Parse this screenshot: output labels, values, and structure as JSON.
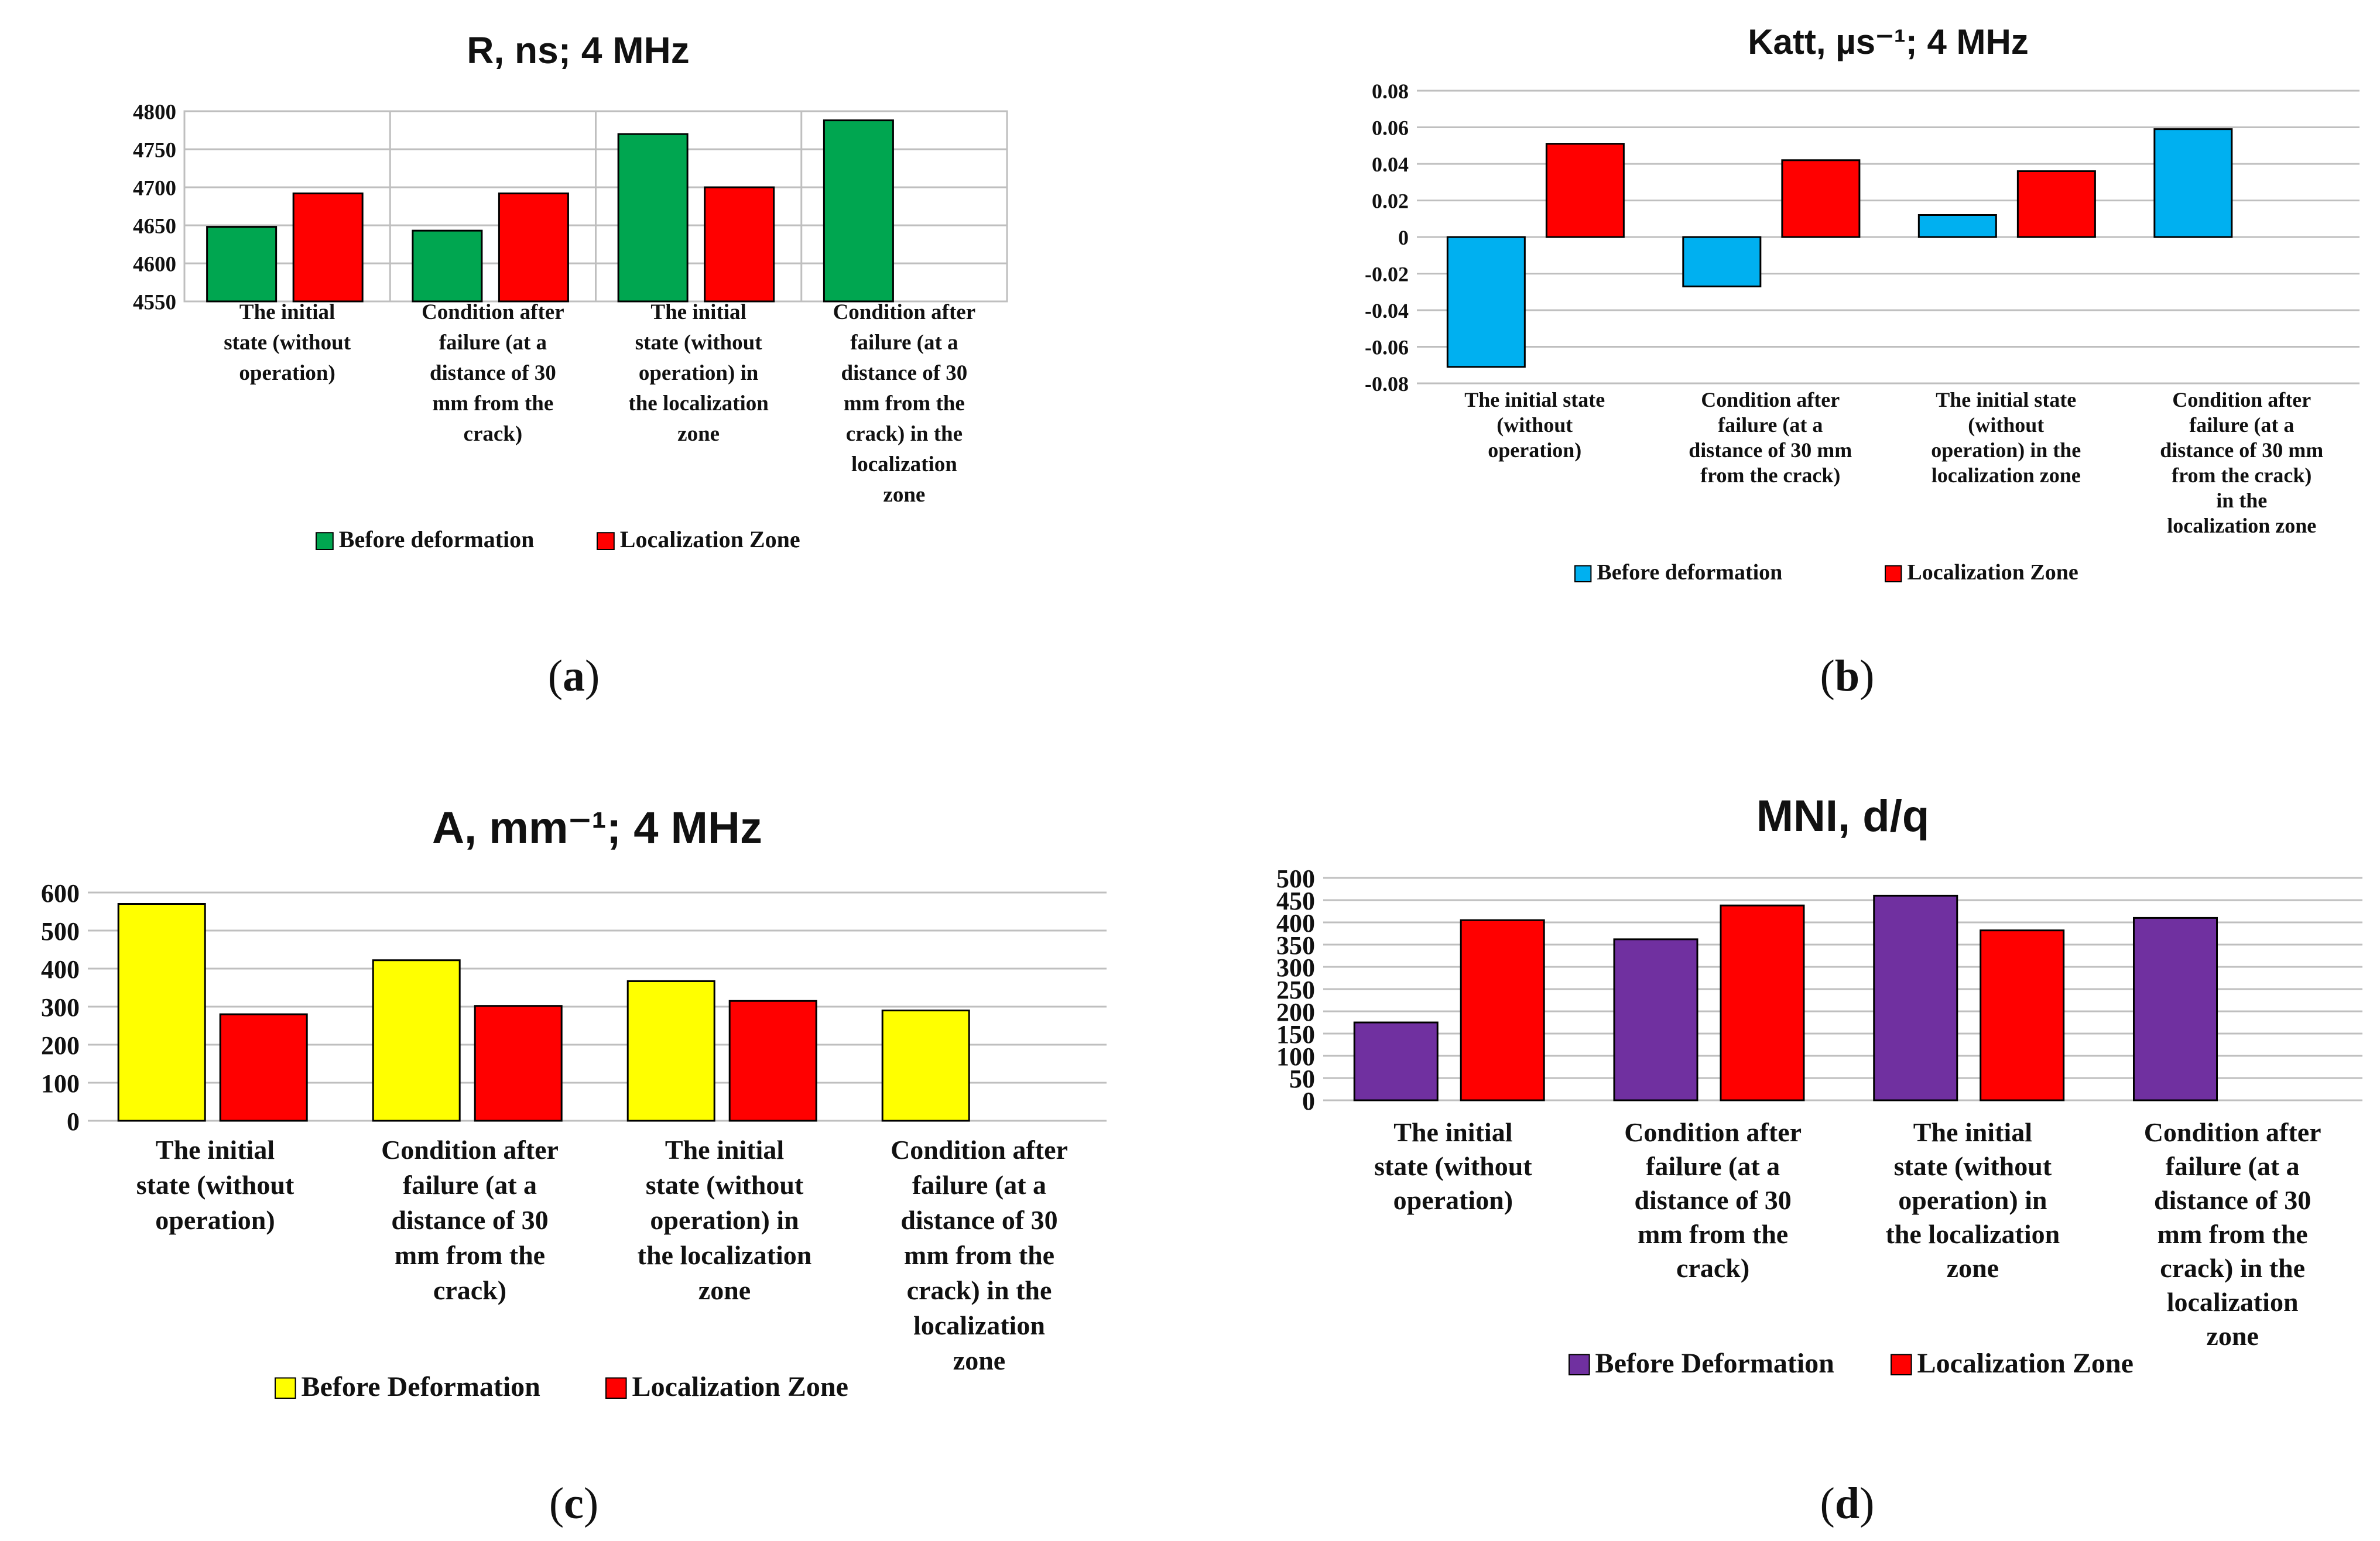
{
  "panel_letters": {
    "a": "a",
    "b": "b",
    "c": "c",
    "d": "d"
  },
  "chart_data": [
    {
      "id": "a",
      "type": "bar",
      "title": "R, ns; 4 MHz",
      "categories": [
        "The initial state (without operation)",
        "Condition after failure (at a distance of 30 mm from the crack)",
        "The initial state (without operation) in the localization zone",
        "Condition after failure (at a distance of 30 mm from the crack) in the localization zone"
      ],
      "series": [
        {
          "name": "Before deformation",
          "color": "#00a650",
          "values": [
            4648,
            4643,
            4770,
            4788
          ]
        },
        {
          "name": "Localization Zone",
          "color": "#ff0000",
          "values": [
            4692,
            4692,
            4700,
            null
          ]
        }
      ],
      "ylim": [
        4550,
        4800
      ],
      "yticks": [
        4550,
        4600,
        4650,
        4700,
        4750,
        4800
      ],
      "ytick_labels": [
        "4550",
        "4600",
        "4650",
        "4700",
        "4750",
        "4800"
      ],
      "grid": true,
      "legend": "bottom"
    },
    {
      "id": "b",
      "type": "bar",
      "title": "Katt, µs⁻¹; 4 MHz",
      "categories": [
        "The initial state (without operation)",
        "Condition after failure (at a distance of 30 mm from the crack)",
        "The initial state (without operation) in the localization zone",
        "Condition after failure (at a distance of 30 mm from the crack) in the localization zone"
      ],
      "series": [
        {
          "name": "Before deformation",
          "color": "#00b0f0",
          "values": [
            -0.071,
            -0.027,
            0.012,
            0.059
          ]
        },
        {
          "name": "Localization Zone",
          "color": "#ff0000",
          "values": [
            0.051,
            0.042,
            0.036,
            null
          ]
        }
      ],
      "ylim": [
        -0.08,
        0.08
      ],
      "yticks": [
        -0.08,
        -0.06,
        -0.04,
        -0.02,
        0,
        0.02,
        0.04,
        0.06,
        0.08
      ],
      "ytick_labels": [
        "-0.08",
        "-0.06",
        "-0.04",
        "-0.02",
        "0",
        "0.02",
        "0.04",
        "0.06",
        "0.08"
      ],
      "grid": true,
      "legend": "bottom"
    },
    {
      "id": "c",
      "type": "bar",
      "title": "A, mm⁻¹; 4 MHz",
      "categories": [
        "The initial state (without operation)",
        "Condition after failure (at a distance of 30 mm from the crack)",
        "The initial state (without operation) in the localization zone",
        "Condition after failure (at a distance of 30 mm from the crack) in the localization zone"
      ],
      "series": [
        {
          "name": "Before Deformation",
          "color": "#ffff00",
          "values": [
            570,
            422,
            367,
            290
          ]
        },
        {
          "name": "Localization Zone",
          "color": "#ff0000",
          "values": [
            280,
            302,
            315,
            null
          ]
        }
      ],
      "ylim": [
        0,
        600
      ],
      "yticks": [
        0,
        100,
        200,
        300,
        400,
        500,
        600
      ],
      "ytick_labels": [
        "0",
        "100",
        "200",
        "300",
        "400",
        "500",
        "600"
      ],
      "grid": true,
      "legend": "bottom"
    },
    {
      "id": "d",
      "type": "bar",
      "title": "MNI, d/q",
      "categories": [
        "The initial state (without operation)",
        "Condition after failure (at a distance of 30 mm from the crack)",
        "The initial state (without operation) in the localization zone",
        "Condition after failure (at a distance of 30 mm from the crack) in the localization zone"
      ],
      "series": [
        {
          "name": "Before Deformation",
          "color": "#7030a0",
          "values": [
            175,
            362,
            460,
            410
          ]
        },
        {
          "name": "Localization Zone",
          "color": "#ff0000",
          "values": [
            405,
            438,
            382,
            null
          ]
        }
      ],
      "ylim": [
        0,
        500
      ],
      "yticks": [
        0,
        50,
        100,
        150,
        200,
        250,
        300,
        350,
        400,
        450,
        500
      ],
      "ytick_labels": [
        "0",
        "50",
        "100",
        "150",
        "200",
        "250",
        "300",
        "350",
        "400",
        "450",
        "500"
      ],
      "grid": true,
      "legend": "bottom"
    }
  ]
}
